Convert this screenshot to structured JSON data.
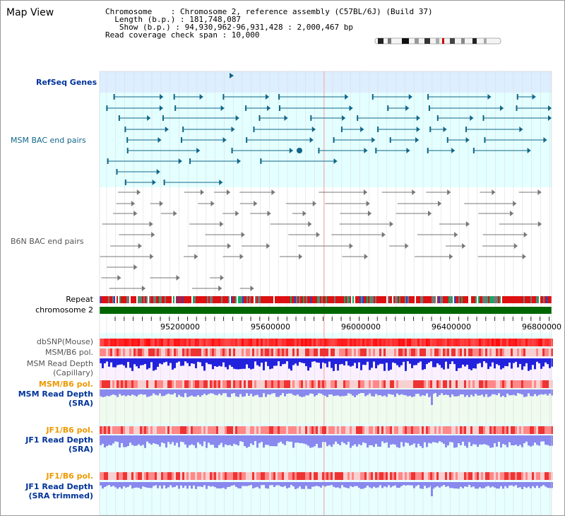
{
  "panel": {
    "title": "Map View"
  },
  "info": {
    "chromosome": "Chromosome    : Chromosome 2, reference assembly (C57BL/6J) (Build 37)",
    "length": "Length (b.p.) : 181,748,087",
    "show": "Show (b.p.) : 94,930,962-96,931,428 : 2,000,467 bp",
    "coverage": "Read coverage check span : 10,000"
  },
  "tracks": {
    "refseq": "RefSeq Genes",
    "msm_bac": "MSM BAC end pairs",
    "b6n_bac": "B6N BAC end pairs",
    "repeat": "Repeat",
    "chrom": "chromosome 2",
    "dbsnp": "dbSNP(Mouse)",
    "msm_b6_pol_1": "MSM/B6 pol.",
    "msm_depth_cap_1": "MSM Read Depth",
    "msm_depth_cap_2": "(Capillary)",
    "msm_b6_pol_2": "MSM/B6 pol.",
    "msm_depth_sra_1": "MSM Read Depth",
    "msm_depth_sra_2": "(SRA)",
    "jf1_b6_pol_1": "JF1/B6 pol.",
    "jf1_depth_sra_1": "JF1 Read Depth",
    "jf1_depth_sra_2": "(SRA)",
    "jf1_b6_pol_2": "JF1/B6 pol.",
    "jf1_depth_trim_1": "JF1 Read Depth",
    "jf1_depth_trim_2": "(SRA trimmed)"
  },
  "axis": {
    "ticks": [
      "95200000",
      "95600000",
      "96000000",
      "96400000",
      "96800000"
    ]
  },
  "colors": {
    "refseq_bg": "#ddeeff",
    "bac_bg": "#e4ffff",
    "b6n_bg": "#ffffff",
    "chrom_bar": "#006600",
    "feature_teal": "#116688",
    "feature_gray": "#777777",
    "depth_blue": "#2222dd",
    "depth_light": "#8888ee"
  }
}
